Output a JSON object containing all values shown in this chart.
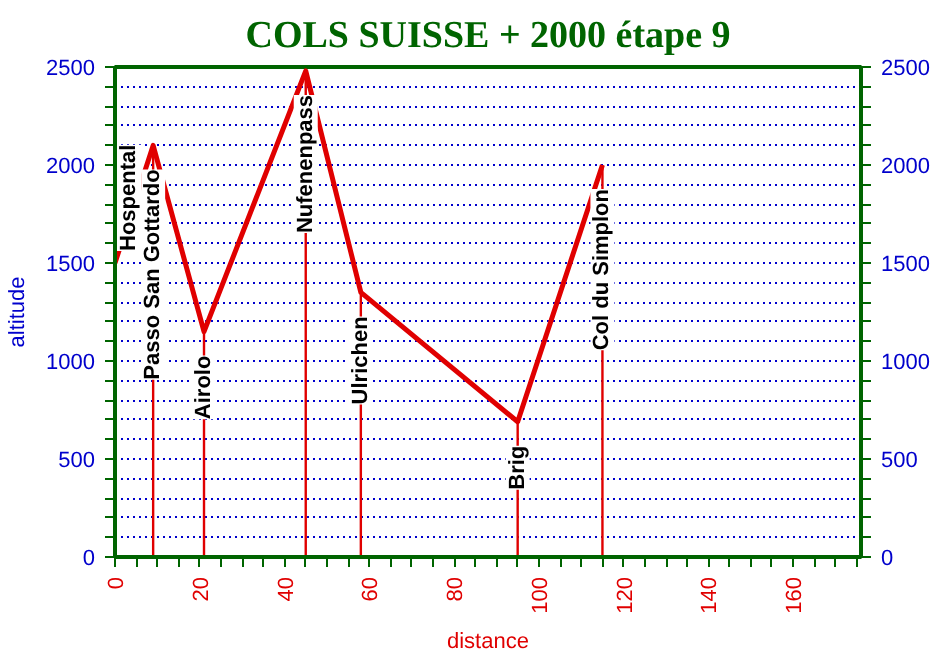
{
  "chart_data": {
    "type": "line",
    "title": "COLS SUISSE + 2000 étape 9",
    "xlabel": "distance",
    "ylabel": "altitude",
    "x": [
      0,
      9,
      21,
      45,
      58,
      95,
      115
    ],
    "series": [
      {
        "color": "#e00000",
        "values": [
          1500,
          2100,
          1150,
          2480,
          1350,
          690,
          2000
        ]
      }
    ],
    "xlim": [
      0,
      176
    ],
    "xticks": [
      0,
      {
        "value": 5,
        "label": null
      },
      {
        "value": 10,
        "label": null
      },
      {
        "value": 15,
        "label": null
      },
      20,
      {
        "value": 25,
        "label": null
      },
      {
        "value": 30,
        "label": null
      },
      {
        "value": 35,
        "label": null
      },
      40,
      {
        "value": 45,
        "label": null
      },
      {
        "value": 50,
        "label": null
      },
      {
        "value": 55,
        "label": null
      },
      60,
      {
        "value": 65,
        "label": null
      },
      {
        "value": 70,
        "label": null
      },
      {
        "value": 75,
        "label": null
      },
      80,
      {
        "value": 85,
        "label": null
      },
      {
        "value": 90,
        "label": null
      },
      {
        "value": 95,
        "label": null
      },
      100,
      {
        "value": 105,
        "label": null
      },
      {
        "value": 110,
        "label": null
      },
      {
        "value": 115,
        "label": null
      },
      120,
      {
        "value": 125,
        "label": null
      },
      {
        "value": 130,
        "label": null
      },
      {
        "value": 135,
        "label": null
      },
      140,
      {
        "value": 145,
        "label": null
      },
      {
        "value": 150,
        "label": null
      },
      {
        "value": 155,
        "label": null
      },
      160,
      {
        "value": 165,
        "label": null
      },
      {
        "value": 170,
        "label": null
      },
      {
        "value": 175,
        "label": null
      }
    ],
    "ylim": [
      0,
      2500
    ],
    "yticks": [
      0,
      {
        "value": 100,
        "label": null
      },
      {
        "value": 200,
        "label": null
      },
      {
        "value": 300,
        "label": null
      },
      {
        "value": 400,
        "label": null
      },
      500,
      {
        "value": 600,
        "label": null
      },
      {
        "value": 700,
        "label": null
      },
      {
        "value": 800,
        "label": null
      },
      {
        "value": 900,
        "label": null
      },
      1000,
      {
        "value": 1100,
        "label": null
      },
      {
        "value": 1200,
        "label": null
      },
      {
        "value": 1300,
        "label": null
      },
      {
        "value": 1400,
        "label": null
      },
      1500,
      {
        "value": 1600,
        "label": null
      },
      {
        "value": 1700,
        "label": null
      },
      {
        "value": 1800,
        "label": null
      },
      {
        "value": 1900,
        "label": null
      },
      2000,
      {
        "value": 2100,
        "label": null
      },
      {
        "value": 2200,
        "label": null
      },
      {
        "value": 2300,
        "label": null
      },
      {
        "value": 2400,
        "label": null
      },
      2500
    ],
    "y2lim": [
      0,
      2500
    ],
    "y2ticks": [
      0,
      {
        "value": 100,
        "label": null
      },
      {
        "value": 200,
        "label": null
      },
      {
        "value": 300,
        "label": null
      },
      {
        "value": 400,
        "label": null
      },
      500,
      {
        "value": 600,
        "label": null
      },
      {
        "value": 700,
        "label": null
      },
      {
        "value": 800,
        "label": null
      },
      {
        "value": 900,
        "label": null
      },
      1000,
      {
        "value": 1100,
        "label": null
      },
      {
        "value": 1200,
        "label": null
      },
      {
        "value": 1300,
        "label": null
      },
      {
        "value": 1400,
        "label": null
      },
      1500,
      {
        "value": 1600,
        "label": null
      },
      {
        "value": 1700,
        "label": null
      },
      {
        "value": 1800,
        "label": null
      },
      {
        "value": 1900,
        "label": null
      },
      2000,
      {
        "value": 2100,
        "label": null
      },
      {
        "value": 2200,
        "label": null
      },
      {
        "value": 2300,
        "label": null
      },
      {
        "value": 2400,
        "label": null
      },
      2500
    ],
    "annotations": [
      {
        "text": "Hospental",
        "x": 0,
        "y": 1500
      }
    ],
    "grid": "y",
    "marker": "none",
    "line_style": "solid",
    "ref_lines": [
      {
        "axis": "x",
        "value": 9,
        "label": "Passo San Gottardo",
        "color": "#e00000"
      },
      {
        "axis": "x",
        "value": 21,
        "label": "Airolo",
        "color": "#e00000"
      },
      {
        "axis": "x",
        "value": 45,
        "label": "Nufenenpass",
        "color": "#e00000"
      },
      {
        "axis": "x",
        "value": 58,
        "label": "Ulrichen",
        "color": "#e00000"
      },
      {
        "axis": "x",
        "value": 95,
        "label": "Brig",
        "color": "#e00000"
      },
      {
        "axis": "x",
        "value": 115,
        "label": "Col du Simplon",
        "color": "#e00000"
      }
    ]
  }
}
